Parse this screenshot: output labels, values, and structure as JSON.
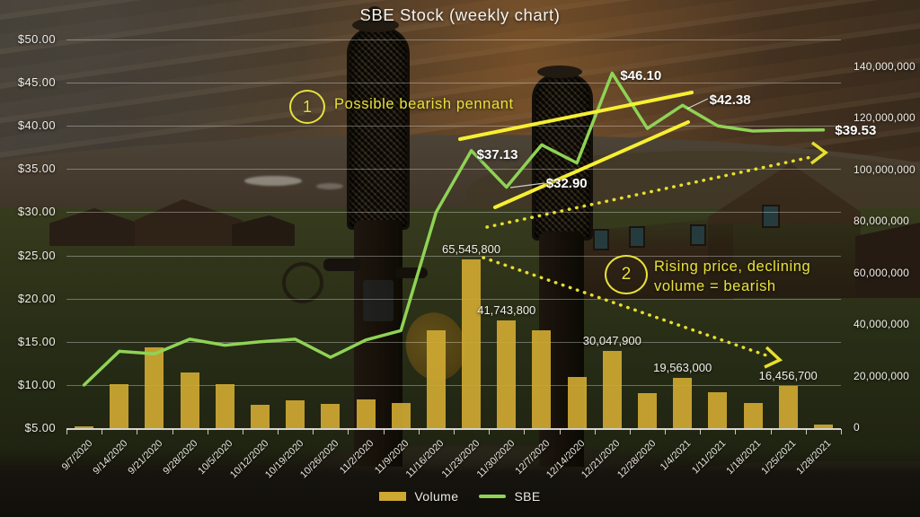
{
  "title": "SBE Stock (weekly chart)",
  "colors": {
    "volume_bar": "#cda832",
    "sbe_line": "#8fd355",
    "annotation_yellow": "#e8e23a",
    "trendline_yellow": "#f6ef33",
    "dotted_yellow": "#e6df2e",
    "text_white": "#f5f3ef"
  },
  "annotations": {
    "note1": {
      "badge": "1",
      "text": "Possible bearish pennant"
    },
    "note2": {
      "badge": "2",
      "line1": "Rising price, declining",
      "line2": "volume = bearish"
    }
  },
  "legend": {
    "volume_label": "Volume",
    "sbe_label": "SBE"
  },
  "chart_data": {
    "type": "bar",
    "subtype": "combo bar+line",
    "title": "SBE Stock (weekly chart)",
    "categories": [
      "9/7/2020",
      "9/14/2020",
      "9/21/2020",
      "9/28/2020",
      "10/5/2020",
      "10/12/2020",
      "10/19/2020",
      "10/26/2020",
      "11/2/2020",
      "11/9/2020",
      "11/16/2020",
      "11/23/2020",
      "11/30/2020",
      "12/7/2020",
      "12/14/2020",
      "12/21/2020",
      "12/28/2020",
      "1/4/2021",
      "1/11/2021",
      "1/18/2021",
      "1/25/2021",
      "1/28/2021"
    ],
    "series": [
      {
        "name": "Volume",
        "type": "bar",
        "axis": "right",
        "color": "#cda832",
        "values": [
          800000,
          17200000,
          31400000,
          21500000,
          17000000,
          9000000,
          10800000,
          9400000,
          11100000,
          9700000,
          38000000,
          65545800,
          41743800,
          38000000,
          20000000,
          30047900,
          13700000,
          19563000,
          14000000,
          9600000,
          16456700,
          1300000
        ]
      },
      {
        "name": "SBE",
        "type": "line",
        "axis": "left",
        "color": "#8fd355",
        "values": [
          10.0,
          13.9,
          13.6,
          15.3,
          14.6,
          15.0,
          15.3,
          13.2,
          15.2,
          16.3,
          30.0,
          37.13,
          32.9,
          37.8,
          35.7,
          46.1,
          39.7,
          42.38,
          40.0,
          39.4,
          39.5,
          39.53
        ]
      }
    ],
    "left_axis": {
      "min": 5,
      "max": 50,
      "step": 5,
      "ticks": [
        "$50.00",
        "$45.00",
        "$40.00",
        "$35.00",
        "$30.00",
        "$25.00",
        "$20.00",
        "$15.00",
        "$10.00",
        "$5.00"
      ]
    },
    "right_axis": {
      "min": 0,
      "max": 140000000,
      "step": 20000000,
      "ticks": [
        "140,000,000",
        "120,000,000",
        "100,000,000",
        "80,000,000",
        "60,000,000",
        "40,000,000",
        "20,000,000",
        "0"
      ]
    },
    "price_callouts": [
      {
        "text": "$37.13",
        "index": 11,
        "value": 37.13
      },
      {
        "text": "$32.90",
        "index": 12,
        "value": 32.9
      },
      {
        "text": "$46.10",
        "index": 15,
        "value": 46.1
      },
      {
        "text": "$42.38",
        "index": 17,
        "value": 42.38
      },
      {
        "text": "$39.53",
        "index": 21,
        "value": 39.53
      }
    ],
    "volume_callouts": [
      {
        "text": "65,545,800",
        "index": 11,
        "value": 65545800
      },
      {
        "text": "41,743,800",
        "index": 12,
        "value": 41743800
      },
      {
        "text": "30,047,900",
        "index": 15,
        "value": 30047900
      },
      {
        "text": "19,563,000",
        "index": 17,
        "value": 19563000
      },
      {
        "text": "16,456,700",
        "index": 20,
        "value": 16456700
      }
    ],
    "grid": true,
    "legend_position": "bottom"
  }
}
